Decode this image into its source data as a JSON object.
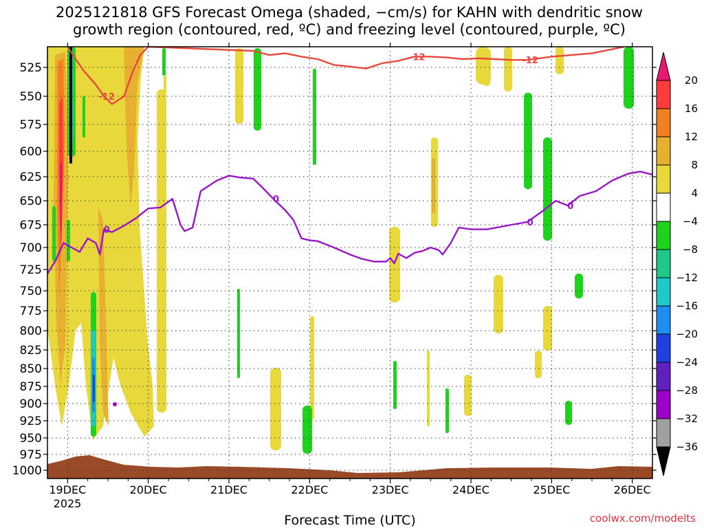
{
  "chart_data": {
    "type": "heatmap",
    "title_line1": "2025121818 GFS Forecast Omega (shaded, −cm/s) for KAHN with dendritic snow",
    "title_line2": "growth region (contoured, red, ºC) and freezing level (contoured, purple, ºC)",
    "xlabel": "Forecast Time (UTC)",
    "credit": "coolwx.com/modelts",
    "x_ticks": [
      {
        "label": "19DEC",
        "day": 19
      },
      {
        "label": "20DEC",
        "day": 20
      },
      {
        "label": "21DEC",
        "day": 21
      },
      {
        "label": "22DEC",
        "day": 22
      },
      {
        "label": "23DEC",
        "day": 23
      },
      {
        "label": "24DEC",
        "day": 24
      },
      {
        "label": "25DEC",
        "day": 25
      },
      {
        "label": "26DEC",
        "day": 26
      }
    ],
    "x_year_label": "2025",
    "xlim_days": [
      18.75,
      26.25
    ],
    "y_ticks": [
      525,
      550,
      575,
      600,
      625,
      650,
      675,
      700,
      725,
      750,
      775,
      800,
      825,
      850,
      875,
      900,
      925,
      950,
      975,
      1000
    ],
    "ylim_hpa": [
      1000,
      500
    ],
    "grid": true,
    "colorbar": {
      "levels": [
        20,
        16,
        12,
        8,
        4,
        -4,
        -8,
        -12,
        -16,
        -20,
        -24,
        -28,
        -32,
        -36
      ],
      "colors": [
        "#e8186e",
        "#ff3c3c",
        "#f08020",
        "#e8b030",
        "#e8d83c",
        "#ffffff",
        "#1ed21e",
        "#20c888",
        "#20c8c8",
        "#1e8cf0",
        "#2040e0",
        "#6020c0",
        "#9c00c8",
        "#a0a0a0",
        "#000000"
      ]
    },
    "contours": [
      {
        "label": "-12",
        "color": "#e8483c",
        "points": [
          [
            19.0,
            500
          ],
          [
            19.1,
            515
          ],
          [
            19.2,
            528
          ],
          [
            19.35,
            540
          ],
          [
            19.45,
            550
          ],
          [
            19.55,
            557
          ],
          [
            19.7,
            550
          ],
          [
            19.8,
            530
          ],
          [
            19.9,
            510
          ],
          [
            20.0,
            500
          ],
          [
            21.3,
            505
          ],
          [
            21.5,
            510
          ],
          [
            21.7,
            508
          ],
          [
            21.9,
            512
          ],
          [
            22.1,
            515
          ],
          [
            22.3,
            522
          ],
          [
            22.5,
            524
          ],
          [
            22.7,
            526
          ],
          [
            22.9,
            520
          ],
          [
            23.1,
            517
          ],
          [
            23.3,
            512
          ],
          [
            23.5,
            512
          ],
          [
            23.7,
            513
          ],
          [
            23.9,
            515
          ],
          [
            24.1,
            514
          ],
          [
            24.3,
            515
          ],
          [
            24.5,
            516
          ],
          [
            24.7,
            516
          ],
          [
            25.0,
            512
          ],
          [
            25.5,
            508
          ],
          [
            25.9,
            500
          ]
        ]
      },
      {
        "label": "0",
        "color": "#9a14c8",
        "points": [
          [
            18.75,
            730
          ],
          [
            18.85,
            715
          ],
          [
            18.95,
            695
          ],
          [
            19.05,
            700
          ],
          [
            19.15,
            705
          ],
          [
            19.25,
            690
          ],
          [
            19.35,
            695
          ],
          [
            19.4,
            708
          ],
          [
            19.45,
            680
          ],
          [
            19.55,
            683
          ],
          [
            19.7,
            676
          ],
          [
            19.85,
            668
          ],
          [
            20.0,
            658
          ],
          [
            20.15,
            657
          ],
          [
            20.3,
            648
          ],
          [
            20.4,
            675
          ],
          [
            20.45,
            682
          ],
          [
            20.55,
            678
          ],
          [
            20.65,
            640
          ],
          [
            20.85,
            629
          ],
          [
            21.0,
            624
          ],
          [
            21.15,
            626
          ],
          [
            21.3,
            627
          ],
          [
            21.4,
            635
          ],
          [
            21.55,
            648
          ],
          [
            21.7,
            660
          ],
          [
            21.8,
            670
          ],
          [
            21.9,
            690
          ],
          [
            22.0,
            692
          ],
          [
            22.1,
            693
          ],
          [
            22.3,
            700
          ],
          [
            22.5,
            708
          ],
          [
            22.65,
            713
          ],
          [
            22.8,
            716
          ],
          [
            22.95,
            716
          ],
          [
            23.0,
            712
          ],
          [
            23.05,
            718
          ],
          [
            23.1,
            707
          ],
          [
            23.2,
            712
          ],
          [
            23.3,
            706
          ],
          [
            23.4,
            704
          ],
          [
            23.5,
            700
          ],
          [
            23.6,
            703
          ],
          [
            23.65,
            708
          ],
          [
            23.75,
            695
          ],
          [
            23.85,
            678
          ],
          [
            24.0,
            680
          ],
          [
            24.2,
            680
          ],
          [
            24.5,
            675
          ],
          [
            24.7,
            672
          ],
          [
            24.9,
            660
          ],
          [
            25.05,
            650
          ],
          [
            25.2,
            655
          ],
          [
            25.35,
            645
          ],
          [
            25.55,
            640
          ],
          [
            25.75,
            629
          ],
          [
            25.95,
            622
          ],
          [
            26.1,
            620
          ],
          [
            26.25,
            623
          ]
        ]
      }
    ]
  }
}
